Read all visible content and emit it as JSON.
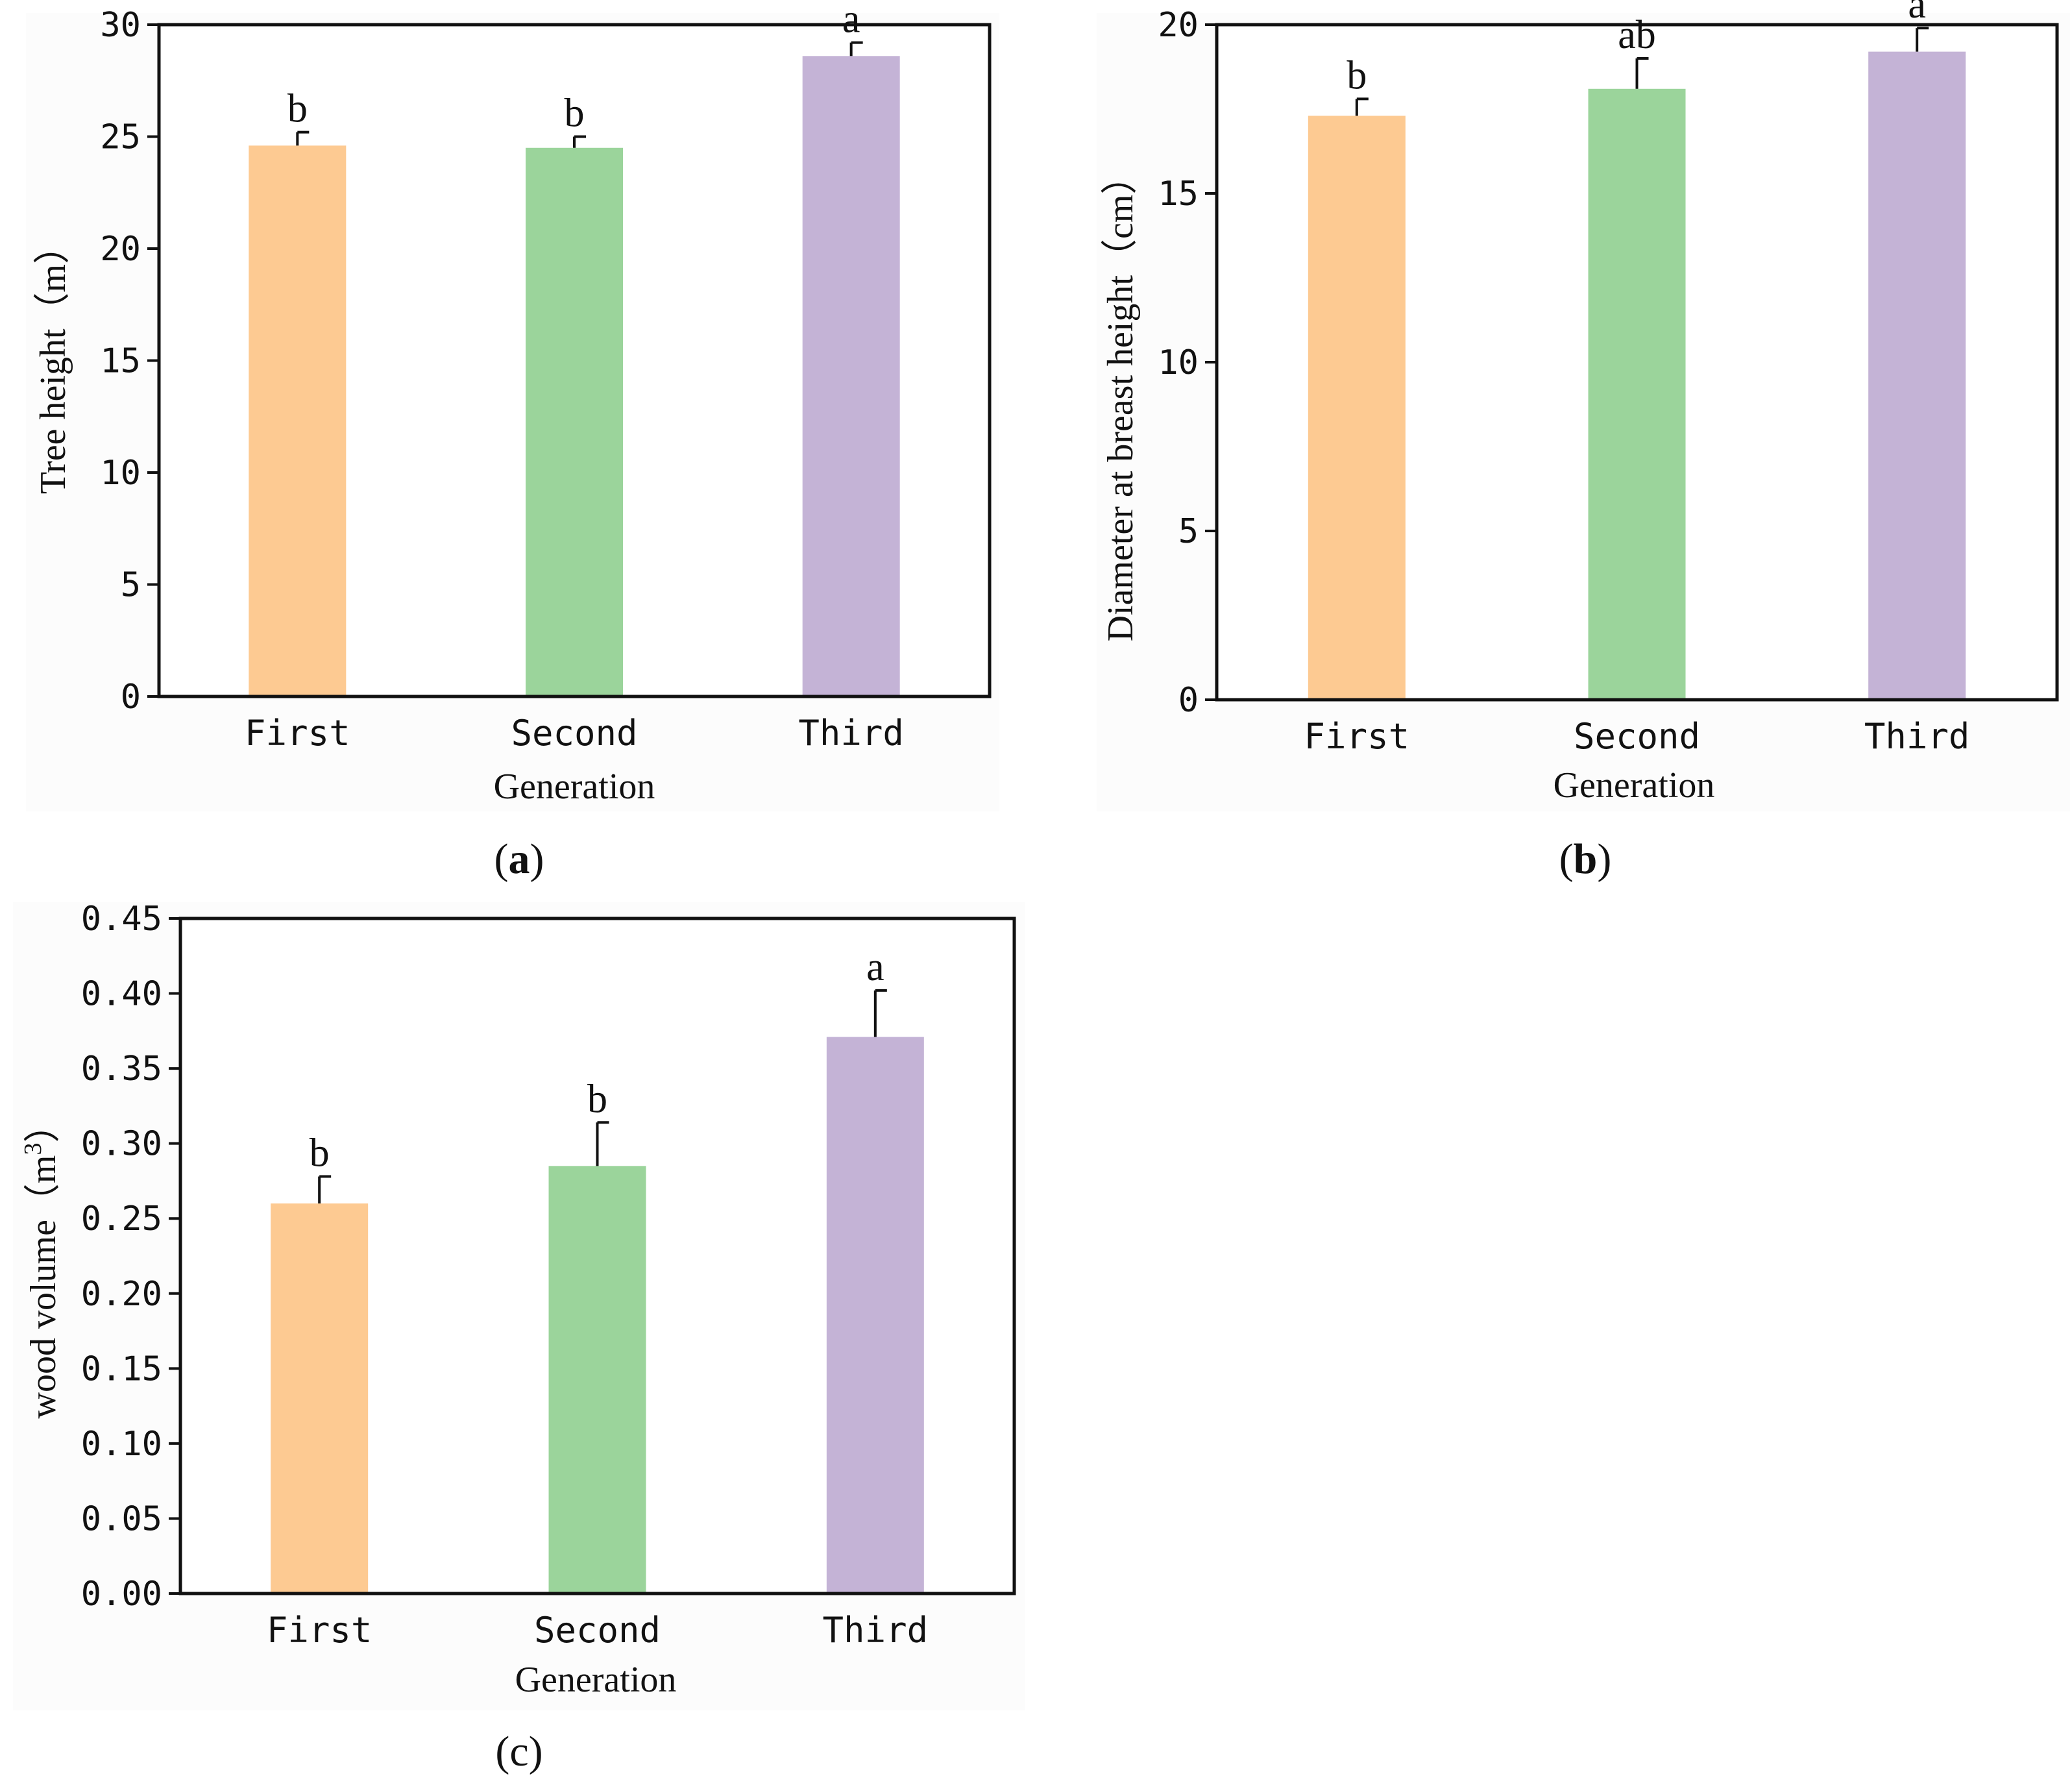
{
  "figure": {
    "panels": [
      {
        "id": "a",
        "caption_letter": "a"
      },
      {
        "id": "b",
        "caption_letter": "b"
      },
      {
        "id": "c",
        "caption_letter": "c"
      }
    ]
  },
  "chart_data": [
    {
      "type": "bar",
      "panel": "a",
      "title": "",
      "xlabel": "Generation",
      "ylabel": "Tree height（m）",
      "categories": [
        "First",
        "Second",
        "Third"
      ],
      "values": [
        24.6,
        24.5,
        28.6
      ],
      "error": [
        0.6,
        0.5,
        0.6
      ],
      "significance": [
        "b",
        "b",
        "a"
      ],
      "ylim": [
        0,
        30
      ],
      "yticks": [
        "0",
        "5",
        "10",
        "15",
        "20",
        "25",
        "30"
      ],
      "bar_colors": [
        "#fdca92",
        "#9bd49b",
        "#c4b3d6"
      ]
    },
    {
      "type": "bar",
      "panel": "b",
      "title": "",
      "xlabel": "Generation",
      "ylabel": "Diameter at breast height（cm）",
      "categories": [
        "First",
        "Second",
        "Third"
      ],
      "values": [
        17.3,
        18.1,
        19.2
      ],
      "error": [
        0.5,
        0.9,
        0.7
      ],
      "significance": [
        "b",
        "ab",
        "a"
      ],
      "ylim": [
        0,
        20
      ],
      "yticks": [
        "0",
        "5",
        "10",
        "15",
        "20"
      ],
      "bar_colors": [
        "#fdca92",
        "#9bd49b",
        "#c4b3d6"
      ]
    },
    {
      "type": "bar",
      "panel": "c",
      "title": "",
      "xlabel": "Generation",
      "ylabel_main": "wood volume（m",
      "ylabel_sup": "3",
      "ylabel_end": "）",
      "categories": [
        "First",
        "Second",
        "Third"
      ],
      "values": [
        0.26,
        0.285,
        0.371
      ],
      "error": [
        0.018,
        0.029,
        0.031
      ],
      "significance": [
        "b",
        "b",
        "a"
      ],
      "ylim": [
        0,
        0.45
      ],
      "yticks": [
        "0.00",
        "0.05",
        "0.10",
        "0.15",
        "0.20",
        "0.25",
        "0.30",
        "0.35",
        "0.40",
        "0.45"
      ],
      "bar_colors": [
        "#fdca92",
        "#9bd49b",
        "#c4b3d6"
      ]
    }
  ]
}
